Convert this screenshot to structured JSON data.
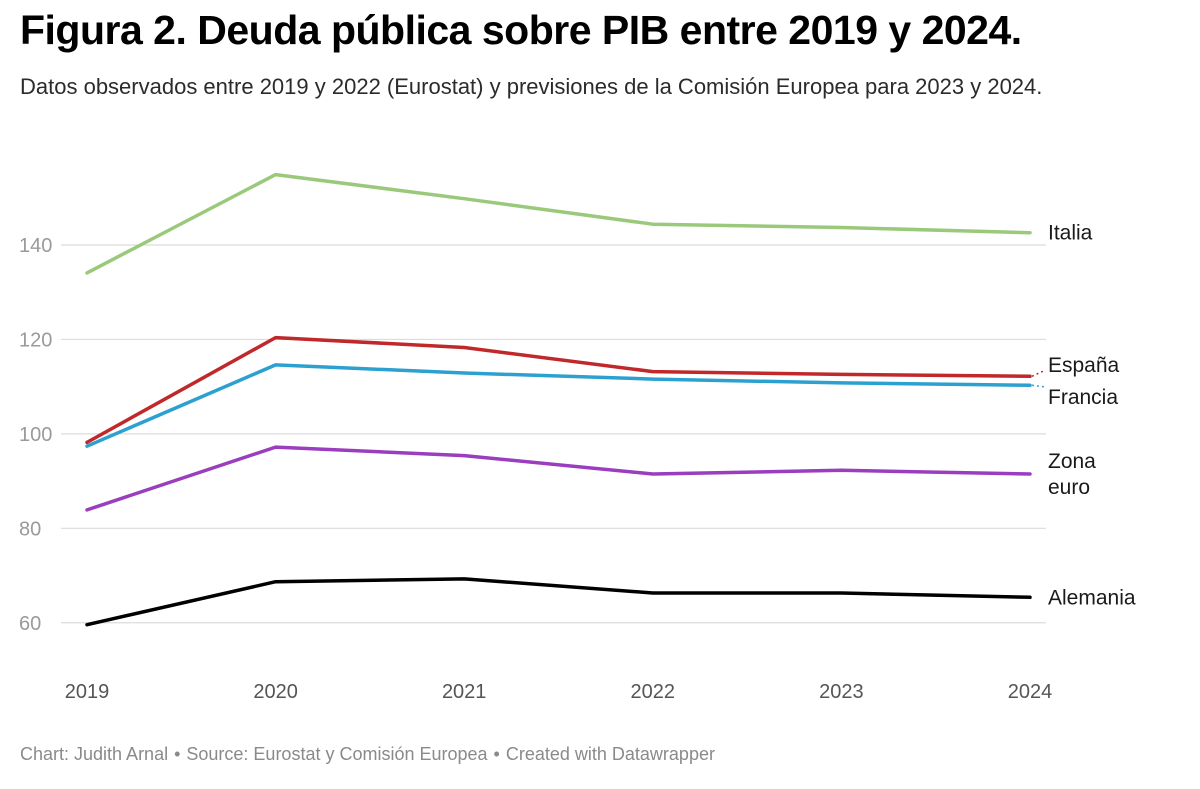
{
  "header": {
    "title": "Figura 2. Deuda pública sobre PIB entre 2019 y 2024.",
    "subtitle": "Datos observados entre 2019 y 2022 (Eurostat) y previsiones de la Comisión Europea para 2023 y 2024."
  },
  "footer": {
    "chart_credit": "Chart: Judith Arnal",
    "source": "Source: Eurostat y Comisión Europea",
    "created_with": "Created with Datawrapper",
    "separator": "•"
  },
  "chart_data": {
    "type": "line",
    "title": "Figura 2. Deuda pública sobre PIB entre 2019 y 2024.",
    "subtitle": "Datos observados entre 2019 y 2022 (Eurostat) y previsiones de la Comisión Europea para 2023 y 2024.",
    "xlabel": "",
    "ylabel": "",
    "x": [
      "2019",
      "2020",
      "2021",
      "2022",
      "2023",
      "2024"
    ],
    "ylim": [
      50,
      158
    ],
    "yticks": [
      60,
      80,
      100,
      120,
      140
    ],
    "grid": true,
    "legend": "direct labels at right end of lines",
    "series": [
      {
        "name": "Italia",
        "label_lines": [
          "Italia"
        ],
        "color": "#9ac97c",
        "values": [
          134.1,
          154.9,
          149.8,
          144.4,
          143.7,
          142.6
        ]
      },
      {
        "name": "España",
        "label_lines": [
          "España"
        ],
        "color": "#c0282a",
        "values": [
          98.2,
          120.4,
          118.3,
          113.2,
          112.6,
          112.2
        ]
      },
      {
        "name": "Francia",
        "label_lines": [
          "Francia"
        ],
        "color": "#2ca1d0",
        "values": [
          97.4,
          114.6,
          112.9,
          111.6,
          110.8,
          110.3
        ]
      },
      {
        "name": "Zona euro",
        "label_lines": [
          "Zona",
          "euro"
        ],
        "color": "#9a3dbf",
        "values": [
          83.9,
          97.2,
          95.4,
          91.5,
          92.3,
          91.5
        ]
      },
      {
        "name": "Alemania",
        "label_lines": [
          "Alemania"
        ],
        "color": "#000000",
        "values": [
          59.6,
          68.7,
          69.3,
          66.3,
          66.3,
          65.4
        ]
      }
    ]
  }
}
